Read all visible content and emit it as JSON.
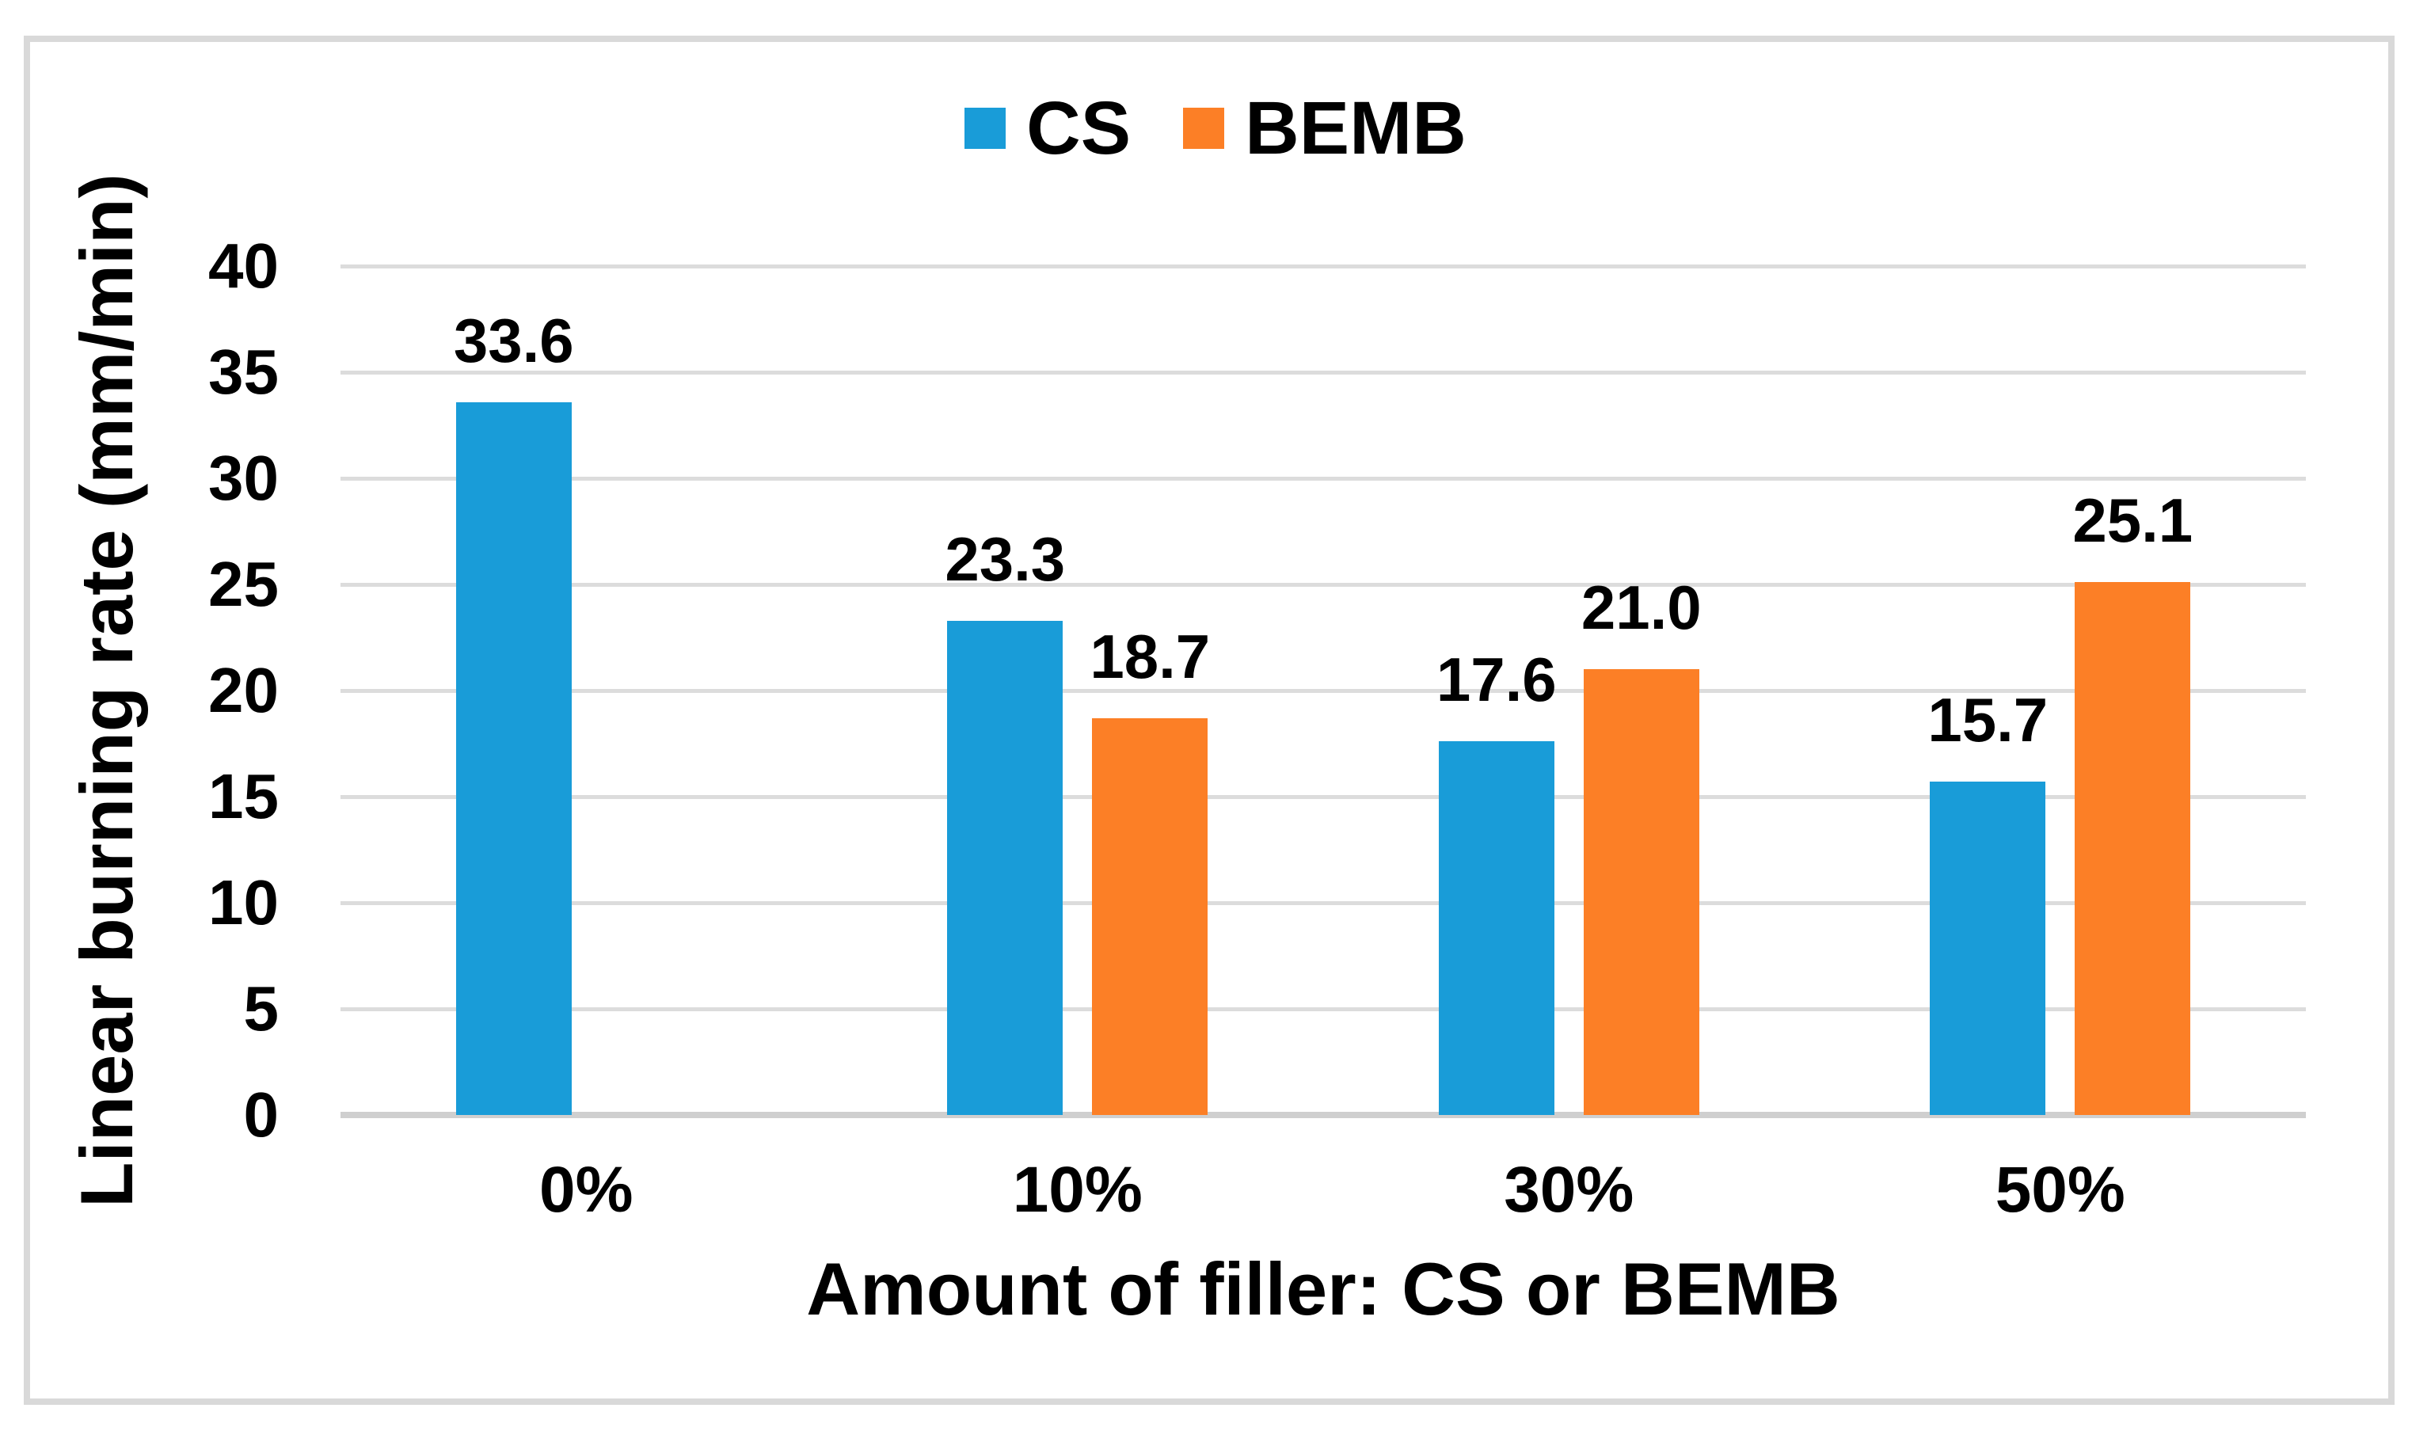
{
  "chart_data": {
    "type": "bar",
    "title": "",
    "categories": [
      "0%",
      "10%",
      "30%",
      "50%"
    ],
    "series": [
      {
        "name": "CS",
        "color": "#199CD8",
        "values": [
          33.6,
          23.3,
          17.6,
          15.7
        ],
        "value_labels": [
          "33.6",
          "23.3",
          "17.6",
          "15.7"
        ]
      },
      {
        "name": "BEMB",
        "color": "#FC7F26",
        "values": [
          null,
          18.7,
          21.0,
          25.1
        ],
        "value_labels": [
          null,
          "18.7",
          "21.0",
          "25.1"
        ]
      }
    ],
    "xlabel": "Amount of filler: CS or BEMB",
    "ylabel": "Linear burning rate (mm/min)",
    "ylim": [
      0,
      40
    ],
    "yticks": [
      0,
      5,
      10,
      15,
      20,
      25,
      30,
      35,
      40
    ],
    "grid": "horizontal-only",
    "legend_position": "top-center",
    "data_labels_shown": true
  },
  "colors": {
    "background": "#FFFFFF",
    "frame_border": "#D9D9D9",
    "gridline": "#DCDCDC",
    "baseline": "#CFCFCF",
    "text": "#000000"
  }
}
